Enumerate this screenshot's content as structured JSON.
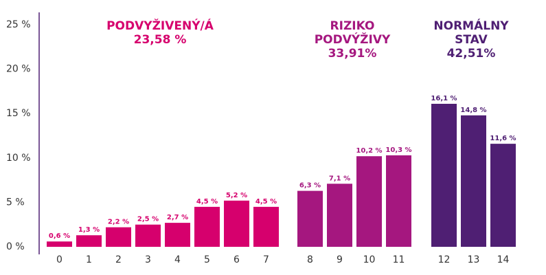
{
  "chart_data": {
    "type": "bar",
    "categories": [
      "0",
      "1",
      "2",
      "3",
      "4",
      "5",
      "6",
      "7",
      "8",
      "9",
      "10",
      "11",
      "12",
      "13",
      "14"
    ],
    "values": [
      0.6,
      1.3,
      2.2,
      2.5,
      2.7,
      4.5,
      5.2,
      4.5,
      6.3,
      7.1,
      10.2,
      10.3,
      16.1,
      14.8,
      11.6
    ],
    "data_labels": [
      "0,6 %",
      "1,3 %",
      "2,2 %",
      "2,5 %",
      "2,7 %",
      "4,5 %",
      "5,2 %",
      "4,5 %",
      "6,3 %",
      "7,1 %",
      "10,2 %",
      "10,3 %",
      "16,1 %",
      "14,8 %",
      "11,6 %"
    ],
    "y_ticks": [
      {
        "value": 0,
        "label": "0 %"
      },
      {
        "value": 5,
        "label": "5 %"
      },
      {
        "value": 10,
        "label": "10 %"
      },
      {
        "value": 15,
        "label": "15 %"
      },
      {
        "value": 20,
        "label": "20 %"
      },
      {
        "value": 25,
        "label": "25 %"
      }
    ],
    "ylim": [
      0,
      25
    ],
    "grid": false,
    "groups": [
      {
        "categories": [
          "0",
          "1",
          "2",
          "3",
          "4",
          "5",
          "6",
          "7"
        ],
        "color": "#d6006d",
        "title_lines": [
          "PODVYŽIVENÝ/Á",
          "23,58 %"
        ]
      },
      {
        "categories": [
          "8",
          "9",
          "10",
          "11"
        ],
        "color": "#a5177f",
        "title_lines": [
          "RIZIKO",
          "PODVÝŽIVY",
          "33,91%"
        ]
      },
      {
        "categories": [
          "12",
          "13",
          "14"
        ],
        "color": "#4f1f73",
        "title_lines": [
          "NORMÁLNY",
          "STAV",
          "42,51%"
        ]
      }
    ],
    "axis_color": "#4f1f73",
    "tick_text_color": "#333333"
  }
}
